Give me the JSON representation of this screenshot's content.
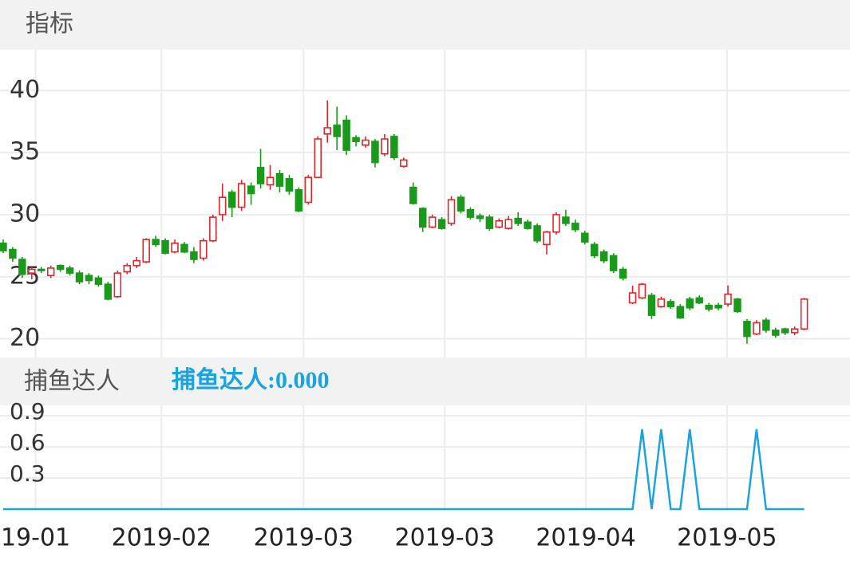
{
  "header": {
    "title": "指标"
  },
  "chart_data": [
    {
      "type": "candlestick",
      "up_color": "#e0262b",
      "down_color": "#1a9a1a",
      "xlim": [
        -0.33,
        88.8
      ],
      "ylim": [
        18.5,
        43.3
      ],
      "yticks": [
        20,
        25,
        30,
        35,
        40
      ],
      "grid": true,
      "open": [
        27.7,
        27.2,
        26.4,
        25.3,
        25.6,
        25.1,
        25.9,
        25.7,
        25.3,
        25.1,
        24.9,
        24.4,
        23.4,
        25.4,
        25.9,
        26.2,
        28.0,
        27.9,
        27.0,
        27.6,
        27.0,
        26.5,
        27.9,
        30.0,
        31.8,
        30.6,
        32.3,
        33.8,
        32.4,
        33.3,
        32.9,
        32.0,
        31.0,
        33.0,
        36.5,
        37.2,
        37.6,
        36.2,
        35.6,
        35.9,
        34.9,
        36.3,
        33.9,
        32.2,
        30.5,
        29.0,
        29.6,
        29.3,
        31.4,
        30.4,
        29.9,
        29.8,
        29.0,
        28.9,
        29.7,
        29.4,
        29.1,
        27.6,
        28.6,
        29.8,
        29.3,
        28.5,
        27.6,
        27.0,
        26.7,
        25.6,
        22.9,
        23.3,
        23.5,
        22.6,
        23.0,
        22.6,
        23.2,
        23.3,
        22.7,
        22.7,
        22.8,
        23.2,
        21.4,
        20.4,
        21.5,
        20.7,
        20.8,
        20.5,
        20.8
      ],
      "close": [
        27.1,
        26.5,
        25.2,
        25.6,
        25.5,
        25.7,
        25.6,
        25.3,
        24.6,
        24.7,
        24.4,
        23.2,
        25.3,
        25.9,
        26.3,
        28.0,
        27.6,
        26.9,
        27.7,
        27.0,
        26.4,
        27.9,
        29.8,
        31.4,
        30.6,
        32.5,
        31.7,
        32.5,
        33.0,
        32.3,
        31.9,
        30.3,
        33.0,
        36.1,
        37.0,
        36.3,
        35.2,
        35.9,
        36.0,
        34.2,
        36.1,
        34.6,
        34.4,
        30.9,
        29.0,
        29.8,
        28.9,
        31.2,
        30.3,
        29.8,
        29.7,
        28.9,
        29.5,
        29.6,
        29.3,
        28.9,
        27.9,
        28.6,
        30.0,
        29.3,
        28.8,
        27.8,
        26.7,
        26.3,
        25.5,
        24.9,
        23.7,
        24.4,
        21.9,
        23.2,
        22.6,
        21.7,
        22.5,
        22.9,
        22.4,
        22.5,
        23.6,
        22.2,
        20.2,
        21.3,
        20.7,
        20.3,
        20.5,
        20.8,
        23.2
      ],
      "high": [
        28.0,
        27.4,
        26.6,
        25.8,
        25.8,
        25.9,
        26.0,
        25.9,
        25.5,
        25.3,
        25.1,
        24.6,
        25.5,
        26.1,
        26.6,
        28.1,
        28.3,
        28.1,
        28.0,
        27.8,
        27.4,
        28.1,
        30.0,
        32.5,
        32.0,
        32.8,
        32.6,
        35.3,
        34.0,
        33.6,
        33.2,
        32.2,
        33.2,
        36.3,
        39.2,
        38.7,
        38.0,
        36.4,
        36.3,
        36.1,
        36.5,
        36.5,
        34.6,
        32.6,
        30.6,
        30.0,
        29.8,
        31.5,
        31.6,
        30.6,
        30.1,
        30.0,
        29.7,
        29.9,
        30.2,
        29.6,
        29.3,
        28.7,
        30.2,
        30.4,
        29.6,
        28.7,
        27.8,
        27.2,
        26.9,
        25.8,
        24.3,
        24.5,
        23.7,
        23.4,
        23.2,
        22.8,
        23.4,
        23.5,
        22.9,
        22.9,
        24.3,
        23.3,
        21.6,
        21.5,
        21.7,
        20.9,
        20.9,
        21.0,
        23.3
      ],
      "low": [
        26.9,
        26.2,
        24.9,
        24.8,
        25.3,
        24.9,
        25.4,
        25.1,
        24.4,
        24.4,
        24.2,
        23.1,
        23.3,
        25.2,
        25.7,
        26.1,
        27.4,
        26.8,
        26.9,
        26.9,
        26.1,
        26.3,
        27.8,
        29.5,
        29.8,
        30.3,
        30.8,
        32.1,
        32.0,
        31.8,
        31.6,
        30.2,
        30.8,
        33.0,
        35.8,
        35.2,
        34.8,
        35.5,
        35.4,
        33.8,
        34.7,
        34.4,
        33.8,
        30.8,
        28.6,
        28.9,
        28.8,
        29.1,
        30.1,
        29.6,
        29.4,
        28.7,
        28.9,
        28.8,
        29.1,
        28.8,
        27.7,
        26.8,
        28.4,
        29.1,
        28.6,
        27.6,
        26.5,
        26.1,
        25.3,
        24.7,
        22.8,
        23.2,
        21.6,
        22.5,
        22.4,
        21.6,
        22.3,
        22.8,
        22.2,
        22.3,
        22.6,
        22.1,
        19.6,
        20.3,
        20.5,
        20.1,
        20.3,
        20.3,
        20.7
      ]
    },
    {
      "type": "line",
      "title": "捕鱼达人",
      "legend": "捕鱼达人:0.000",
      "xlim": [
        -0.33,
        88.8
      ],
      "ylim": [
        0,
        1.0
      ],
      "yticks": [
        0.3,
        0.6,
        0.9
      ],
      "grid": true,
      "xticks": [
        {
          "value": 3.4,
          "label": "19-01"
        },
        {
          "value": 16.6,
          "label": "2019-02"
        },
        {
          "value": 31.5,
          "label": "2019-03"
        },
        {
          "value": 46.3,
          "label": "2019-03"
        },
        {
          "value": 61.1,
          "label": "2019-04"
        },
        {
          "value": 75.9,
          "label": "2019-05"
        }
      ],
      "series": [
        {
          "color": "#1aa3df",
          "values": [
            0,
            0,
            0,
            0,
            0,
            0,
            0,
            0,
            0,
            0,
            0,
            0,
            0,
            0,
            0,
            0,
            0,
            0,
            0,
            0,
            0,
            0,
            0,
            0,
            0,
            0,
            0,
            0,
            0,
            0,
            0,
            0,
            0,
            0,
            0,
            0,
            0,
            0,
            0,
            0,
            0,
            0,
            0,
            0,
            0,
            0,
            0,
            0,
            0,
            0,
            0,
            0,
            0,
            0,
            0,
            0,
            0,
            0,
            0,
            0,
            0,
            0,
            0,
            0,
            0,
            0,
            0,
            0.77,
            0,
            0.77,
            0,
            0,
            0.77,
            0,
            0,
            0,
            0,
            0,
            0,
            0.77,
            0,
            0,
            0,
            0,
            0
          ]
        }
      ]
    }
  ]
}
